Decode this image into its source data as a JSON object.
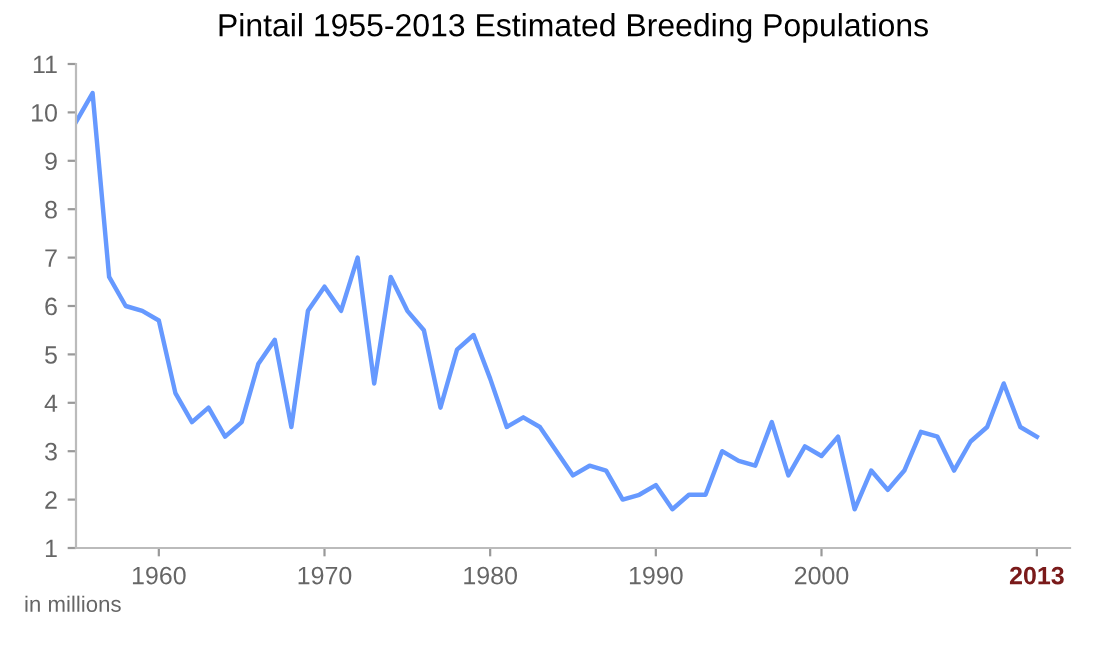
{
  "chart_data": {
    "type": "line",
    "title": "Pintail 1955-2013 Estimated Breeding Populations",
    "annotations": [
      "in millions"
    ],
    "x": [
      1955,
      1956,
      1957,
      1958,
      1959,
      1960,
      1961,
      1962,
      1963,
      1964,
      1965,
      1966,
      1967,
      1968,
      1969,
      1970,
      1971,
      1972,
      1973,
      1974,
      1975,
      1976,
      1977,
      1978,
      1979,
      1980,
      1981,
      1982,
      1983,
      1984,
      1985,
      1986,
      1987,
      1988,
      1989,
      1990,
      1991,
      1992,
      1993,
      1994,
      1995,
      1996,
      1997,
      1998,
      1999,
      2000,
      2001,
      2002,
      2003,
      2004,
      2005,
      2006,
      2007,
      2008,
      2009,
      2010,
      2011,
      2012,
      2013
    ],
    "series": [
      {
        "color": "#6699ff",
        "values": [
          9.8,
          10.4,
          6.6,
          6.0,
          5.9,
          5.7,
          4.2,
          3.6,
          3.9,
          3.3,
          3.6,
          4.8,
          5.3,
          3.5,
          5.9,
          6.4,
          5.9,
          7.0,
          4.4,
          6.6,
          5.9,
          5.5,
          3.9,
          5.1,
          5.4,
          4.5,
          3.5,
          3.7,
          3.5,
          3.0,
          2.5,
          2.7,
          2.6,
          2.0,
          2.1,
          2.3,
          1.8,
          2.1,
          2.1,
          3.0,
          2.8,
          2.7,
          3.6,
          2.5,
          3.1,
          2.9,
          3.3,
          1.8,
          2.6,
          2.2,
          2.6,
          3.4,
          3.3,
          2.6,
          3.2,
          3.5,
          4.4,
          3.5,
          3.3
        ]
      }
    ],
    "xlim": [
      1955,
      2015
    ],
    "xticks": [
      1960,
      1970,
      1980,
      1990,
      2000,
      2013
    ],
    "ylim": [
      1,
      11
    ],
    "yticks": [
      1,
      2,
      3,
      4,
      5,
      6,
      7,
      8,
      9,
      10,
      11
    ],
    "grid": false,
    "legend": false,
    "marker": "none",
    "line_style": "solid"
  }
}
